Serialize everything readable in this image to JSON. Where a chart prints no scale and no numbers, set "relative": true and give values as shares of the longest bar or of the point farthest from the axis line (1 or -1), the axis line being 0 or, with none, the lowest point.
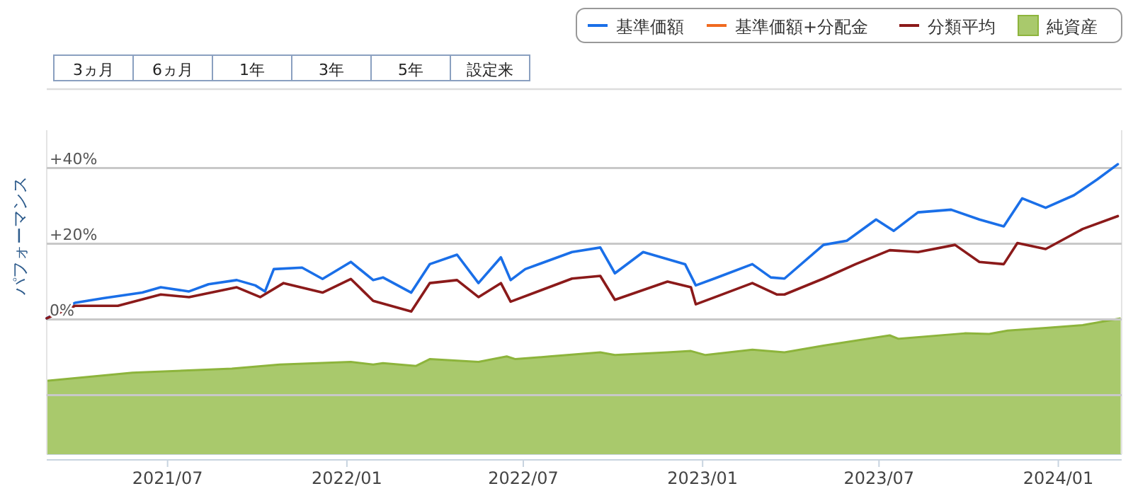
{
  "chart_data": [
    {
      "type": "line",
      "ylabel": "パフォーマンス",
      "legend": "top right",
      "grid": "y",
      "line_style": "solid",
      "marker": "none",
      "annotations": [
        "3ヵ月",
        "6ヵ月",
        "1年",
        "3年",
        "5年",
        "設定来"
      ],
      "xlim": [
        "2021-02-27",
        "2024-03-06"
      ],
      "ylim": [
        -35.6,
        50
      ],
      "xticks": [
        {
          "value": "2021-07",
          "label": "2021/07"
        },
        {
          "value": "2022-01",
          "label": "2022/01"
        },
        {
          "value": "2022-07",
          "label": "2022/07"
        },
        {
          "value": "2023-01",
          "label": "2023/01"
        },
        {
          "value": "2023-07",
          "label": "2023/07"
        },
        {
          "value": "2024-01",
          "label": "2024/01"
        }
      ],
      "yticks": [
        {
          "value": 40,
          "label": "+40%"
        },
        {
          "value": 20,
          "label": "+20%"
        },
        {
          "value": 0,
          "label": "0%"
        },
        {
          "value": -20,
          "label": null
        }
      ],
      "series": [
        {
          "name": "基準価額",
          "color": "#1a6fe8",
          "x": [
            "2021-02-27",
            "2021-03-28",
            "2021-04-26",
            "2021-06-05",
            "2021-06-24",
            "2021-07-23",
            "2021-08-12",
            "2021-09-10",
            "2021-09-29",
            "2021-10-09",
            "2021-10-18",
            "2021-11-16",
            "2021-12-07",
            "2022-01-05",
            "2022-01-28",
            "2022-02-07",
            "2022-03-08",
            "2022-03-27",
            "2022-04-24",
            "2022-05-16",
            "2022-06-08",
            "2022-06-18",
            "2022-07-03",
            "2022-08-20",
            "2022-09-18",
            "2022-10-03",
            "2022-11-01",
            "2022-12-14",
            "2022-12-25",
            "2023-01-13",
            "2023-02-21",
            "2023-03-12",
            "2023-03-26",
            "2023-05-05",
            "2023-05-29",
            "2023-06-28",
            "2023-07-16",
            "2023-08-10",
            "2023-09-13",
            "2023-10-12",
            "2023-11-06",
            "2023-11-25",
            "2023-12-19",
            "2024-01-17",
            "2024-02-10",
            "2024-03-02"
          ],
          "values": [
            0.3,
            4.4,
            5.6,
            7.1,
            8.5,
            7.4,
            9.3,
            10.4,
            9.0,
            7.4,
            13.3,
            13.7,
            10.7,
            15.2,
            10.4,
            11.1,
            7.1,
            14.6,
            17.1,
            9.6,
            16.4,
            10.4,
            13.3,
            17.8,
            19.0,
            12.2,
            17.8,
            14.6,
            9.0,
            10.8,
            14.6,
            11.1,
            10.8,
            19.7,
            20.8,
            26.4,
            23.4,
            28.3,
            29.0,
            26.4,
            24.6,
            32.0,
            29.5,
            32.8,
            37.0,
            41.0
          ]
        },
        {
          "name": "基準価額+分配金",
          "color": "#f06a20"
        },
        {
          "name": "分類平均",
          "color": "#8b1a1a",
          "x": [
            "2021-02-27",
            "2021-03-28",
            "2021-05-11",
            "2021-06-24",
            "2021-07-23",
            "2021-09-10",
            "2021-10-04",
            "2021-10-28",
            "2021-12-07",
            "2022-01-05",
            "2022-01-28",
            "2022-03-08",
            "2022-03-27",
            "2022-04-24",
            "2022-05-16",
            "2022-06-08",
            "2022-06-18",
            "2022-08-20",
            "2022-09-18",
            "2022-10-03",
            "2022-11-26",
            "2022-12-20",
            "2022-12-25",
            "2023-02-21",
            "2023-03-18",
            "2023-03-26",
            "2023-05-05",
            "2023-06-07",
            "2023-07-12",
            "2023-08-10",
            "2023-09-17",
            "2023-10-12",
            "2023-11-06",
            "2023-11-20",
            "2023-12-19",
            "2024-01-26",
            "2024-03-02"
          ],
          "values": [
            0.3,
            3.6,
            3.6,
            6.6,
            5.9,
            8.5,
            5.9,
            9.6,
            7.1,
            10.7,
            4.9,
            2.1,
            9.6,
            10.4,
            5.9,
            9.6,
            4.7,
            10.8,
            11.5,
            5.2,
            10.0,
            8.5,
            4.0,
            9.6,
            6.6,
            6.6,
            10.8,
            14.6,
            18.3,
            17.8,
            19.7,
            15.2,
            14.6,
            20.2,
            18.6,
            23.9,
            27.3
          ]
        }
      ]
    },
    {
      "type": "area",
      "relative": true,
      "legend": "top right",
      "xlim": [
        "2021-02-27",
        "2024-03-06"
      ],
      "series": [
        {
          "name": "純資産",
          "color": "#a9c96c",
          "x": [
            "2021-02-27",
            "2021-05-26",
            "2021-09-05",
            "2021-10-24",
            "2022-01-05",
            "2022-01-28",
            "2022-02-07",
            "2022-03-13",
            "2022-03-27",
            "2022-05-16",
            "2022-06-14",
            "2022-06-23",
            "2022-07-28",
            "2022-09-18",
            "2022-10-03",
            "2022-11-26",
            "2022-12-20",
            "2023-01-04",
            "2023-02-21",
            "2023-03-26",
            "2023-05-05",
            "2023-07-12",
            "2023-07-21",
            "2023-09-27",
            "2023-10-22",
            "2023-11-10",
            "2023-12-19",
            "2024-01-26",
            "2024-03-05"
          ],
          "values": [
            0.54,
            0.6,
            0.63,
            0.66,
            0.68,
            0.66,
            0.67,
            0.65,
            0.7,
            0.68,
            0.72,
            0.7,
            0.72,
            0.75,
            0.73,
            0.75,
            0.76,
            0.73,
            0.77,
            0.75,
            0.8,
            0.875,
            0.85,
            0.89,
            0.885,
            0.91,
            0.93,
            0.95,
            1.0
          ]
        }
      ]
    }
  ]
}
